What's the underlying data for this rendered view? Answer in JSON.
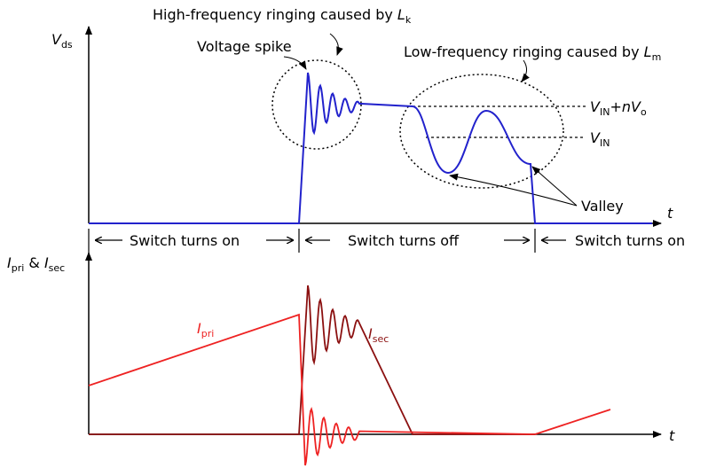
{
  "labels": {
    "hf_ringing": {
      "text": "High-frequency ringing caused by ",
      "symbol": "L",
      "subscript": "k"
    },
    "spike": "Voltage spike",
    "lf_ringing": {
      "text": "Low-frequency ringing caused by ",
      "symbol": "L",
      "subscript": "m"
    },
    "vds": {
      "symbol": "V",
      "subscript": "ds"
    },
    "vin_nvo": {
      "symbol": "V",
      "subscript": "IN",
      "plus": "+",
      "n": "n",
      "symbol2": "V",
      "subscript2": "o"
    },
    "vin": {
      "symbol": "V",
      "subscript": "IN"
    },
    "valley": "Valley",
    "t_top": "t",
    "t_bottom": "t",
    "phase_on_1": "Switch turns on",
    "phase_off": "Switch turns off",
    "phase_on_2": "Switch turns on",
    "currents": {
      "symbol": "I",
      "subscript": "pri",
      "amp": " & ",
      "symbol2": "I",
      "subscript2": "sec"
    },
    "ipri": {
      "symbol": "I",
      "subscript": "pri"
    },
    "isec": {
      "symbol": "I",
      "subscript": "sec"
    }
  }
}
